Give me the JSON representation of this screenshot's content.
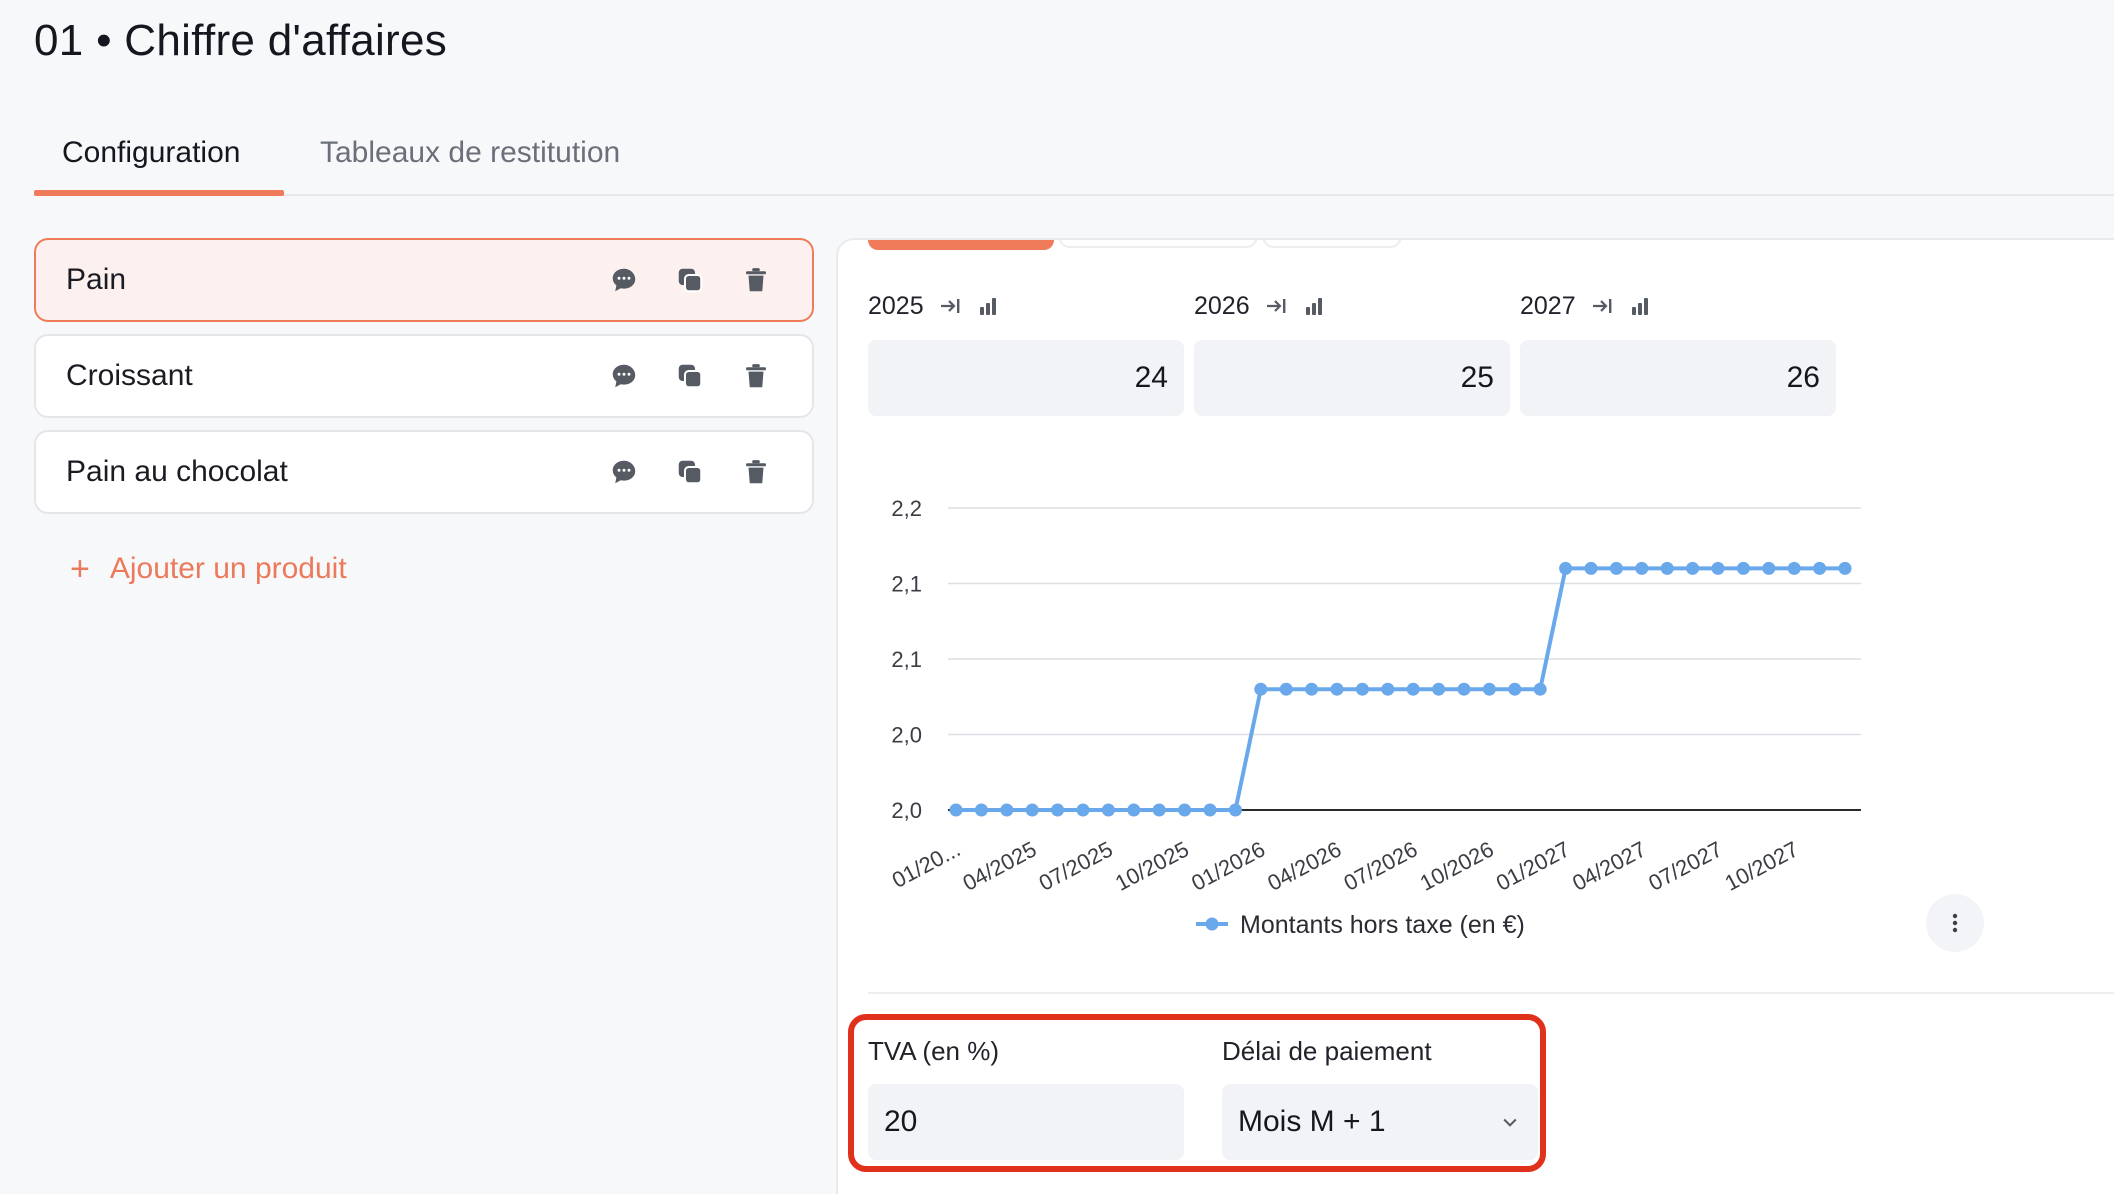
{
  "page": {
    "title": "01 • Chiffre d'affaires"
  },
  "tabs": [
    {
      "label": "Configuration",
      "active": true
    },
    {
      "label": "Tableaux de restitution",
      "active": false
    }
  ],
  "products": [
    {
      "name": "Pain",
      "selected": true
    },
    {
      "name": "Croissant",
      "selected": false
    },
    {
      "name": "Pain au chocolat",
      "selected": false
    }
  ],
  "actions": {
    "add_product": "Ajouter un produit"
  },
  "years": [
    {
      "year": "2025",
      "value": "24"
    },
    {
      "year": "2026",
      "value": "25"
    },
    {
      "year": "2027",
      "value": "26"
    }
  ],
  "chart_data": {
    "type": "line",
    "y_tick_labels": [
      "2,2",
      "2,1",
      "2,1",
      "2,0",
      "2,0"
    ],
    "x_tick_labels": [
      "01/20...",
      "04/2025",
      "07/2025",
      "10/2025",
      "01/2026",
      "04/2026",
      "07/2026",
      "10/2026",
      "01/2027",
      "04/2027",
      "07/2027",
      "10/2027"
    ],
    "series": [
      {
        "name": "Montants hors taxe (en €)",
        "color": "#6aa8ec",
        "values": [
          2.0,
          2.0,
          2.0,
          2.0,
          2.0,
          2.0,
          2.0,
          2.0,
          2.0,
          2.0,
          2.0,
          2.0,
          2.08,
          2.08,
          2.08,
          2.08,
          2.08,
          2.08,
          2.08,
          2.08,
          2.08,
          2.08,
          2.08,
          2.08,
          2.16,
          2.16,
          2.16,
          2.16,
          2.16,
          2.16,
          2.16,
          2.16,
          2.16,
          2.16,
          2.16,
          2.16
        ]
      }
    ],
    "ylim": [
      2.0,
      2.2
    ],
    "grid": true,
    "legend": "bottom-center"
  },
  "form": {
    "tva": {
      "label": "TVA (en %)",
      "value": "20"
    },
    "payment": {
      "label": "Délai de paiement",
      "value": "Mois M + 1"
    }
  },
  "colors": {
    "accent": "#ef7b5b",
    "highlight": "#e0311a",
    "series": "#6aa8ec"
  }
}
